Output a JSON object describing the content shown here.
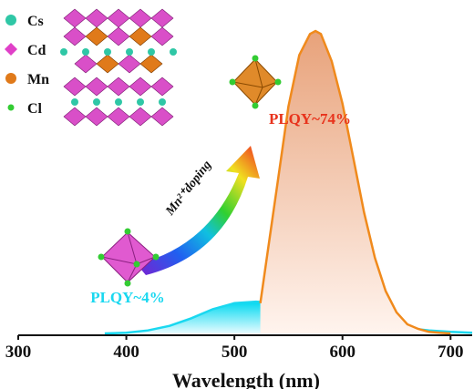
{
  "chart_data": {
    "type": "line",
    "x_label": "Wavelength (nm)",
    "xlim": [
      300,
      720
    ],
    "xticks": [
      300,
      400,
      500,
      600,
      700
    ],
    "ylim": [
      0,
      1
    ],
    "annotation": "Mn²⁺doping",
    "legend_items": [
      {
        "label": "Cs",
        "color": "#2fc7a6"
      },
      {
        "label": "Cd",
        "color": "#e040c8"
      },
      {
        "label": "Mn",
        "color": "#e07a1a"
      },
      {
        "label": "Cl",
        "color": "#33cc33"
      }
    ],
    "series": [
      {
        "name": "PLQY~4%",
        "color": "#1ad8f0",
        "x": [
          380,
          400,
          420,
          440,
          460,
          480,
          500,
          520,
          540,
          560,
          580,
          600,
          620,
          640,
          660,
          680,
          700,
          720
        ],
        "values": [
          0,
          0.002,
          0.01,
          0.025,
          0.05,
          0.08,
          0.1,
          0.105,
          0.1,
          0.09,
          0.075,
          0.06,
          0.045,
          0.03,
          0.018,
          0.01,
          0.005,
          0.002
        ]
      },
      {
        "name": "PLQY~74%",
        "color": "#f08a1c",
        "x": [
          524,
          530,
          540,
          550,
          560,
          570,
          575,
          580,
          590,
          600,
          610,
          620,
          630,
          640,
          650,
          660,
          670,
          680,
          690,
          700
        ],
        "values": [
          0.1,
          0.25,
          0.5,
          0.75,
          0.92,
          0.99,
          1.0,
          0.99,
          0.9,
          0.76,
          0.58,
          0.4,
          0.25,
          0.14,
          0.07,
          0.03,
          0.015,
          0.005,
          0.002,
          0
        ]
      }
    ]
  }
}
